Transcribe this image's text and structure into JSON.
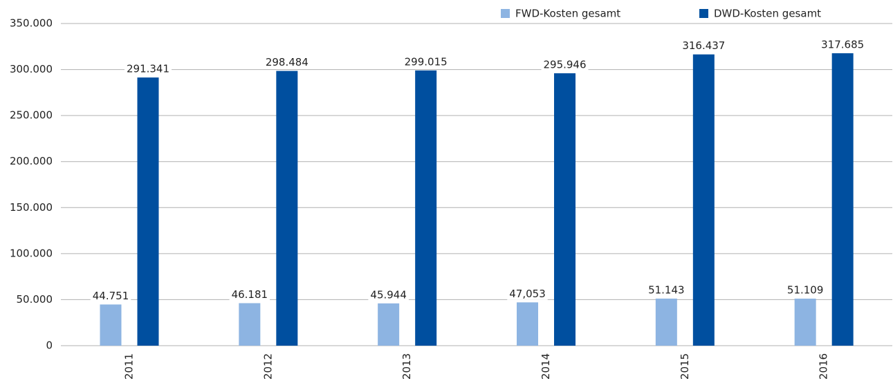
{
  "chart_data": {
    "type": "bar",
    "categories": [
      "2011",
      "2012",
      "2013",
      "2014",
      "2015",
      "2016"
    ],
    "series": [
      {
        "name": "FWD-Kosten gesamt",
        "color": "#8db4e2",
        "values": [
          44751,
          46181,
          45944,
          47053,
          51143,
          51109
        ],
        "value_labels": [
          "44.751",
          "46.181",
          "45.944",
          "47,053",
          "51.143",
          "51.109"
        ]
      },
      {
        "name": "DWD-Kosten gesamt",
        "color": "#004f9f",
        "values": [
          291341,
          298484,
          299015,
          295946,
          316437,
          317685
        ],
        "value_labels": [
          "291.341",
          "298.484",
          "299.015",
          "295.946",
          "316.437",
          "317.685"
        ]
      }
    ],
    "ylim": [
      0,
      350000
    ],
    "yticks": [
      {
        "value": 0,
        "label": "0"
      },
      {
        "value": 50000,
        "label": "50.000"
      },
      {
        "value": 100000,
        "label": "100.000"
      },
      {
        "value": 150000,
        "label": "150.000"
      },
      {
        "value": 200000,
        "label": "200.000"
      },
      {
        "value": 250000,
        "label": "250.000"
      },
      {
        "value": 300000,
        "label": "300.000"
      },
      {
        "value": 350000,
        "label": "350.000"
      }
    ],
    "grid": true,
    "legend": "top-right"
  }
}
